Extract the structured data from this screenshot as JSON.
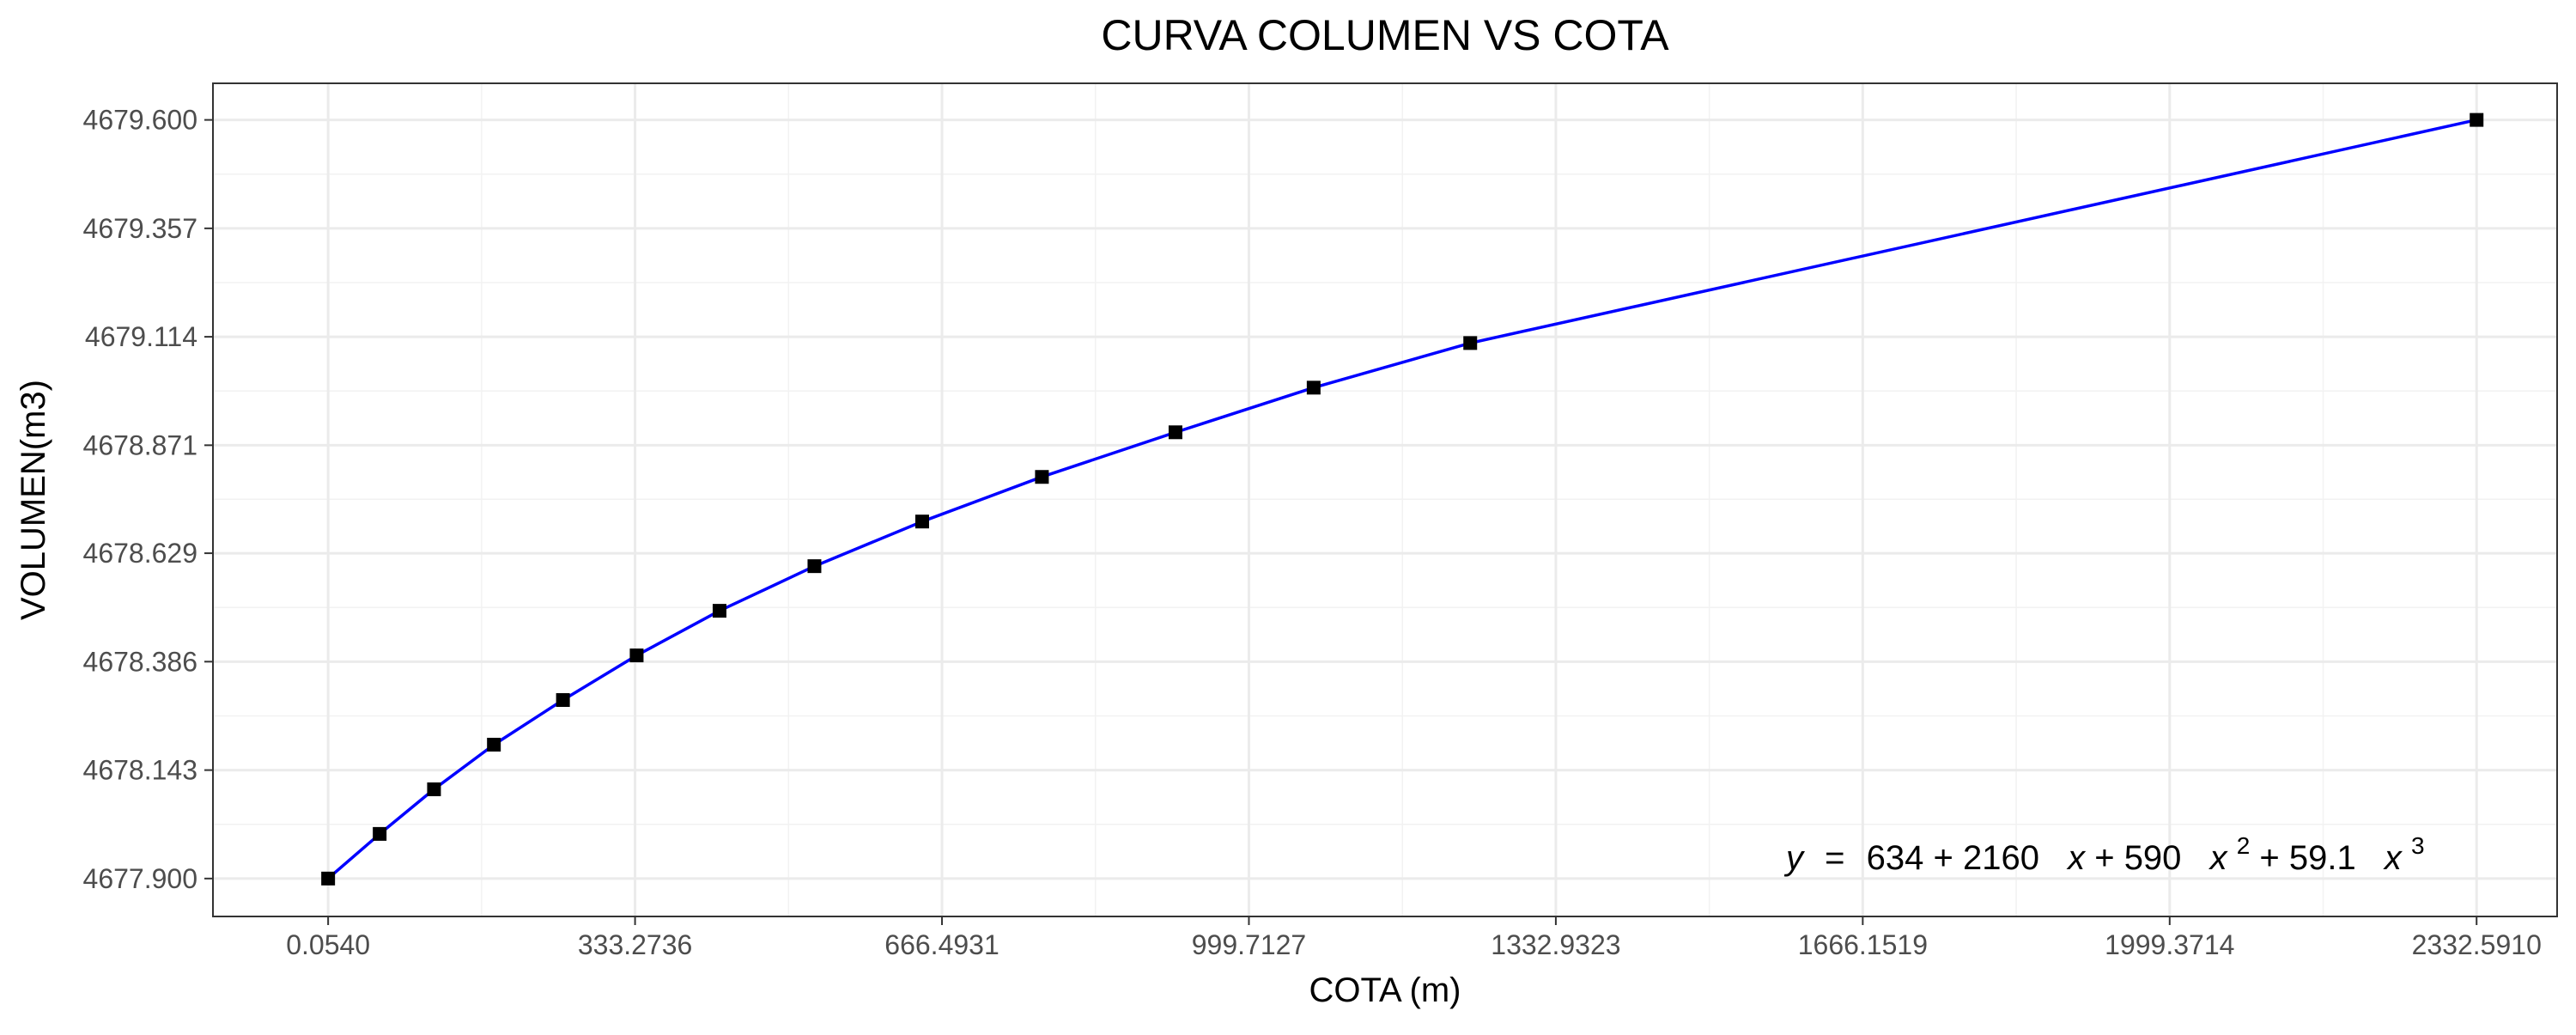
{
  "chart_data": {
    "type": "line",
    "title": "CURVA COLUMEN VS COTA",
    "xlabel": "COTA (m)",
    "ylabel": "VOLUMEN(m3)",
    "xlim": [
      -125,
      2420
    ],
    "ylim": [
      4677.815,
      4679.682
    ],
    "x_ticks": [
      "0.0540",
      "333.2736",
      "666.4931",
      "999.7127",
      "1332.9323",
      "1666.1519",
      "1999.3714",
      "2332.5910"
    ],
    "y_ticks": [
      "4677.900",
      "4678.143",
      "4678.386",
      "4678.629",
      "4678.871",
      "4679.114",
      "4679.357",
      "4679.600"
    ],
    "grid": true,
    "legend": "none",
    "series": [
      {
        "color": "#0000ff",
        "marker": "square",
        "marker_color": "#000000",
        "points": [
          {
            "x": 0.05,
            "y": 4677.9
          },
          {
            "x": 56,
            "y": 4678.0
          },
          {
            "x": 115,
            "y": 4678.1
          },
          {
            "x": 180,
            "y": 4678.2
          },
          {
            "x": 255,
            "y": 4678.3
          },
          {
            "x": 335,
            "y": 4678.4
          },
          {
            "x": 425,
            "y": 4678.5
          },
          {
            "x": 528,
            "y": 4678.6
          },
          {
            "x": 645,
            "y": 4678.7
          },
          {
            "x": 775,
            "y": 4678.8
          },
          {
            "x": 920,
            "y": 4678.9
          },
          {
            "x": 1070,
            "y": 4679.0
          },
          {
            "x": 1240,
            "y": 4679.1
          },
          {
            "x": 2332.59,
            "y": 4679.6
          }
        ]
      }
    ],
    "annotation": {
      "y_var": "y",
      "equals": "=",
      "c0": "634",
      "plus": "+",
      "c1": "2160",
      "x_var": "x",
      "c2": "590",
      "p2": "2",
      "c3": "59.1",
      "p3": "3"
    }
  }
}
